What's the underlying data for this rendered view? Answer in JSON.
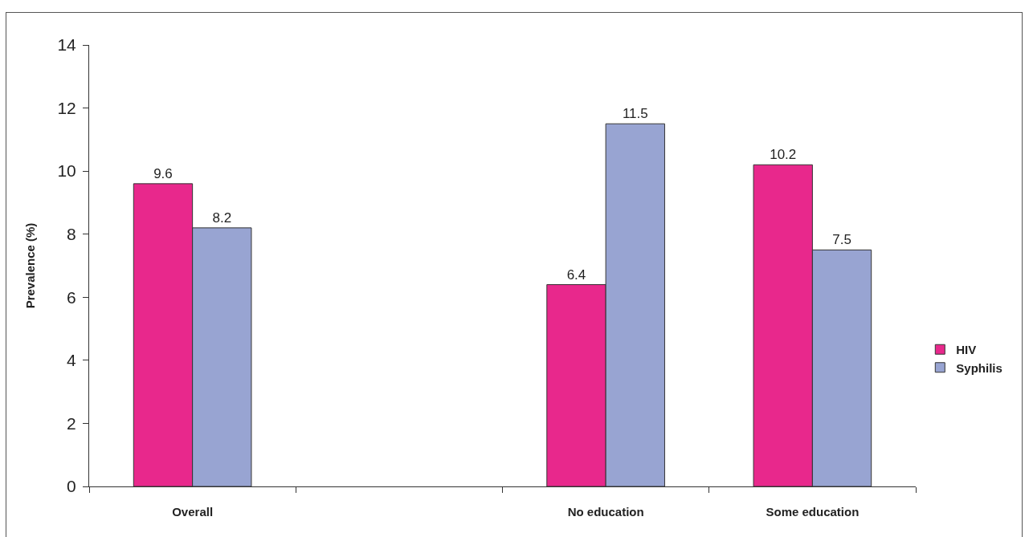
{
  "chart_data": {
    "type": "bar",
    "ylabel": "Prevalence (%)",
    "categories": [
      "Overall",
      null,
      "No education",
      "Some education"
    ],
    "series": [
      {
        "name": "HIV",
        "color": "#e8288c",
        "values": [
          9.6,
          null,
          6.4,
          10.2
        ]
      },
      {
        "name": "Syphilis",
        "color": "#98a4d2",
        "values": [
          8.2,
          null,
          11.5,
          7.5
        ]
      }
    ],
    "ylim": [
      0,
      14
    ],
    "yticks": [
      0,
      2,
      4,
      6,
      8,
      10,
      12,
      14
    ],
    "grid": false,
    "data_labels": true,
    "legend": "right"
  }
}
